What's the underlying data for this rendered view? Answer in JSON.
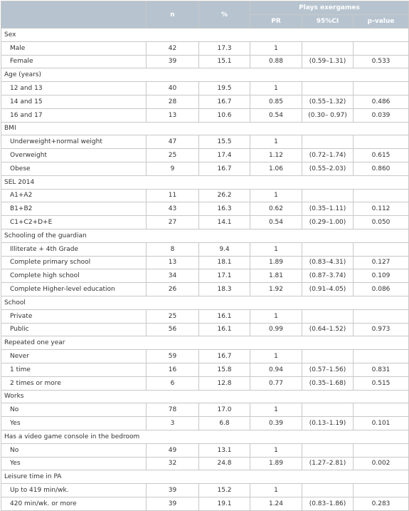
{
  "header": {
    "n": "n",
    "pct": "%",
    "group": "Plays exergames",
    "pr": "PR",
    "ci": "95%CI",
    "p": "p-value"
  },
  "sections": [
    {
      "label": "Sex",
      "rows": [
        [
          "Male",
          "42",
          "17.3",
          "1",
          null,
          null
        ],
        [
          "Female",
          "39",
          "15.1",
          "0.88",
          "(0.59–1.31)",
          "0.533"
        ]
      ]
    },
    {
      "label": "Age (years)",
      "rows": [
        [
          "12 and 13",
          "40",
          "19.5",
          "1",
          null,
          null
        ],
        [
          "14 and 15",
          "28",
          "16.7",
          "0.85",
          "(0.55–1.32)",
          "0.486"
        ],
        [
          "16 and 17",
          "13",
          "10.6",
          "0.54",
          "(0.30– 0.97)",
          "0.039"
        ]
      ]
    },
    {
      "label": "BMI",
      "rows": [
        [
          "Underweight+normal weight",
          "47",
          "15.5",
          "1",
          null,
          null
        ],
        [
          "Overweight",
          "25",
          "17.4",
          "1.12",
          "(0.72–1.74)",
          "0.615"
        ],
        [
          "Obese",
          "9",
          "16.7",
          "1.06",
          "(0.55–2.03)",
          "0.860"
        ]
      ]
    },
    {
      "label": "SEL 2014",
      "rows": [
        [
          "A1+A2",
          "11",
          "26.2",
          "1",
          null,
          null
        ],
        [
          "B1+B2",
          "43",
          "16.3",
          "0.62",
          "(0.35–1.11)",
          "0.112"
        ],
        [
          "C1+C2+D+E",
          "27",
          "14.1",
          "0.54",
          "(0.29–1.00)",
          "0.050"
        ]
      ]
    },
    {
      "label": "Schooling of the guardian",
      "rows": [
        [
          "Illiterate + 4th Grade",
          "8",
          "9.4",
          "1",
          null,
          null
        ],
        [
          "Complete primary school",
          "13",
          "18.1",
          "1.89",
          "(0.83–4.31)",
          "0.127"
        ],
        [
          "Complete high school",
          "34",
          "17.1",
          "1.81",
          "(0.87–3.74)",
          "0.109"
        ],
        [
          "Complete Higher-level education",
          "26",
          "18.3",
          "1.92",
          "(0.91–4.05)",
          "0.086"
        ]
      ]
    },
    {
      "label": "School",
      "rows": [
        [
          "Private",
          "25",
          "16.1",
          "1",
          null,
          null
        ],
        [
          "Public",
          "56",
          "16.1",
          "0.99",
          "(0.64–1.52)",
          "0.973"
        ]
      ]
    },
    {
      "label": "Repeated one year",
      "rows": [
        [
          "Never",
          "59",
          "16.7",
          "1",
          null,
          null
        ],
        [
          "1 time",
          "16",
          "15.8",
          "0.94",
          "(0.57–1.56)",
          "0.831"
        ],
        [
          "2 times or more",
          "6",
          "12.8",
          "0.77",
          "(0.35–1.68)",
          "0.515"
        ]
      ]
    },
    {
      "label": "Works",
      "rows": [
        [
          "No",
          "78",
          "17.0",
          "1",
          null,
          null
        ],
        [
          "Yes",
          "3",
          "6.8",
          "0.39",
          "(0.13–1.19)",
          "0.101"
        ]
      ]
    },
    {
      "label": "Has a video game console in the bedroom",
      "rows": [
        [
          "No",
          "49",
          "13.1",
          "1",
          null,
          null
        ],
        [
          "Yes",
          "32",
          "24.8",
          "1.89",
          "(1.27–2.81)",
          "0.002"
        ]
      ]
    },
    {
      "label": "Leisure time in PA",
      "rows": [
        [
          "Up to 419 min/wk.",
          "39",
          "15.2",
          "1",
          null,
          null
        ],
        [
          "420 min/wk. or more",
          "39",
          "19.1",
          "1.24",
          "(0.83–1.86)",
          "0.283"
        ]
      ]
    }
  ]
}
